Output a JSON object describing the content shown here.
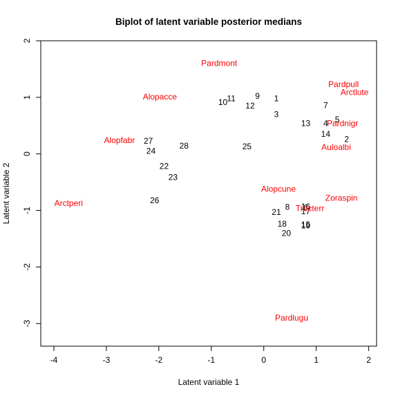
{
  "chart_data": {
    "type": "scatter",
    "title": "Biplot of latent variable posterior medians",
    "xlabel": "Latent variable 1",
    "ylabel": "Latent variable 2",
    "xlim": [
      -4.25,
      2.15
    ],
    "ylim": [
      -3.4,
      2.0
    ],
    "xticks": [
      -4,
      -3,
      -2,
      -1,
      0,
      1,
      2
    ],
    "yticks": [
      -3,
      -2,
      -1,
      0,
      1,
      2
    ],
    "grid": false,
    "colors": {
      "sites": "#000000",
      "species": "#ff0000"
    },
    "sites": [
      {
        "label": "1",
        "x": 0.24,
        "y": 0.98
      },
      {
        "label": "2",
        "x": 1.58,
        "y": 0.26
      },
      {
        "label": "3",
        "x": 0.24,
        "y": 0.7
      },
      {
        "label": "4",
        "x": 1.18,
        "y": 0.54
      },
      {
        "label": "5",
        "x": 1.4,
        "y": 0.61
      },
      {
        "label": "6",
        "x": 0.8,
        "y": -0.95
      },
      {
        "label": "7",
        "x": 1.18,
        "y": 0.86
      },
      {
        "label": "8",
        "x": 0.45,
        "y": -0.94
      },
      {
        "label": "9",
        "x": -0.12,
        "y": 1.02
      },
      {
        "label": "10",
        "x": -0.78,
        "y": 0.91
      },
      {
        "label": "11",
        "x": -0.62,
        "y": 0.98
      },
      {
        "label": "12",
        "x": -0.26,
        "y": 0.85
      },
      {
        "label": "13",
        "x": 0.8,
        "y": 0.54
      },
      {
        "label": "14",
        "x": 1.18,
        "y": 0.35
      },
      {
        "label": "15",
        "x": 0.8,
        "y": -1.25
      },
      {
        "label": "16",
        "x": 0.8,
        "y": -0.93
      },
      {
        "label": "17",
        "x": 0.8,
        "y": -1.02
      },
      {
        "label": "18",
        "x": 0.35,
        "y": -1.24
      },
      {
        "label": "19",
        "x": 0.8,
        "y": -1.27
      },
      {
        "label": "20",
        "x": 0.43,
        "y": -1.4
      },
      {
        "label": "21",
        "x": 0.24,
        "y": -1.03
      },
      {
        "label": "22",
        "x": -1.9,
        "y": -0.22
      },
      {
        "label": "23",
        "x": -1.73,
        "y": -0.41
      },
      {
        "label": "24",
        "x": -2.15,
        "y": 0.05
      },
      {
        "label": "25",
        "x": -0.32,
        "y": 0.13
      },
      {
        "label": "26",
        "x": -2.08,
        "y": -0.82
      },
      {
        "label": "27",
        "x": -2.2,
        "y": 0.23
      },
      {
        "label": "28",
        "x": -1.52,
        "y": 0.14
      }
    ],
    "species": [
      {
        "label": "Pardmont",
        "x": -0.85,
        "y": 1.6
      },
      {
        "label": "Alopacce",
        "x": -1.98,
        "y": 1.01
      },
      {
        "label": "Pardpull",
        "x": 1.52,
        "y": 1.23
      },
      {
        "label": "Arctlute",
        "x": 1.73,
        "y": 1.09
      },
      {
        "label": "Pardnigr",
        "x": 1.5,
        "y": 0.54
      },
      {
        "label": "Auloalbi",
        "x": 1.38,
        "y": 0.12
      },
      {
        "label": "Alopfabr",
        "x": -2.75,
        "y": 0.24
      },
      {
        "label": "Alopcune",
        "x": 0.28,
        "y": -0.62
      },
      {
        "label": "Zoraspin",
        "x": 1.48,
        "y": -0.78
      },
      {
        "label": "Trocterr",
        "x": 0.88,
        "y": -0.96
      },
      {
        "label": "Arctperi",
        "x": -3.72,
        "y": -0.87
      },
      {
        "label": "Pardlugu",
        "x": 0.53,
        "y": -2.9
      }
    ]
  }
}
